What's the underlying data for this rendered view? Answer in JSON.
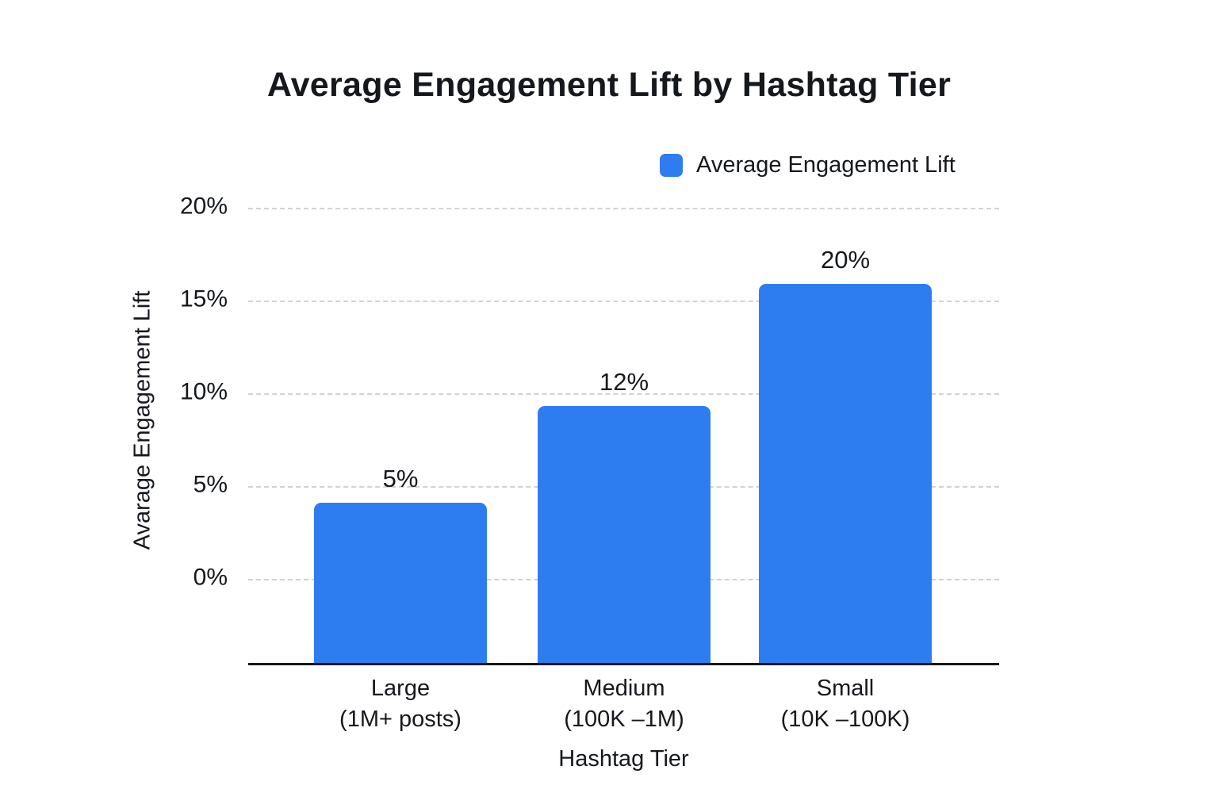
{
  "chart_data": {
    "type": "bar",
    "title": "Average Engagement Lift by Hashtag Tier",
    "xlabel": "Hashtag Tier",
    "ylabel": "Avarage Engagement Lift",
    "legend": {
      "position": "top-right",
      "entries": [
        {
          "label": "Average Engagement Lift",
          "color": "#2E7DF0"
        }
      ]
    },
    "categories": [
      {
        "line1": "Large",
        "line2": "(1M+ posts)"
      },
      {
        "line1": "Medium",
        "line2": "(100K –1M)"
      },
      {
        "line1": "Small",
        "line2": "(10K –100K)"
      }
    ],
    "values": [
      5,
      12,
      20
    ],
    "value_labels": [
      "5%",
      "12%",
      "20%"
    ],
    "yticks": [
      {
        "label": "20%",
        "value": 20
      },
      {
        "label": "15%",
        "value": 15
      },
      {
        "label": "10%",
        "value": 10
      },
      {
        "label": "5%",
        "value": 5
      },
      {
        "label": "0%",
        "value": 0
      }
    ],
    "ylim": [
      0,
      20
    ],
    "grid": "dashed-horizontal",
    "colors": {
      "bar": "#2E7DF0",
      "gridline": "#cfd3d8",
      "axis_line": "#15181c",
      "text": "#15181c"
    },
    "layout_hints": {
      "rendered_bar_top_pct": [
        4.1,
        9.3,
        15.9
      ],
      "bars_anchored_below_zero_line": true
    }
  }
}
